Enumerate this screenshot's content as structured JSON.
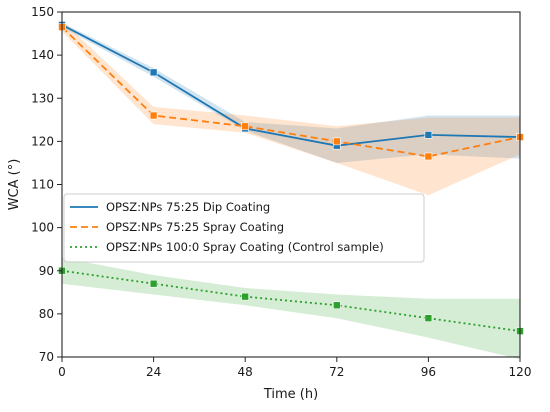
{
  "chart_data": {
    "type": "line",
    "xlabel": "Time (h)",
    "ylabel": "WCA (°)",
    "xlim": [
      0,
      120
    ],
    "ylim": [
      70,
      150
    ],
    "xticks": [
      0,
      24,
      48,
      72,
      96,
      120
    ],
    "yticks": [
      70,
      80,
      90,
      100,
      110,
      120,
      130,
      140,
      150
    ],
    "x": [
      0,
      24,
      48,
      72,
      96,
      120
    ],
    "grid": false,
    "legend_position": "center-left",
    "series": [
      {
        "name": "OPSZ:NPs 75:25 Dip Coating",
        "color": "#1f77b4",
        "linestyle": "solid",
        "values": [
          147,
          136,
          123,
          119,
          121.5,
          121
        ],
        "band_lower": [
          146.5,
          135,
          122.5,
          115,
          117,
          116
        ],
        "band_upper": [
          147.5,
          137,
          124.5,
          123,
          126,
          126
        ]
      },
      {
        "name": "OPSZ:NPs 75:25 Spray Coating",
        "color": "#ff7f0e",
        "linestyle": "dashed",
        "values": [
          146.5,
          126,
          123.5,
          120,
          116.5,
          121
        ],
        "band_lower": [
          145.5,
          124,
          122,
          115,
          107.5,
          117
        ],
        "band_upper": [
          148,
          128,
          126,
          123.5,
          125.5,
          125.5
        ]
      },
      {
        "name": "OPSZ:NPs 100:0 Spray Coating (Control sample)",
        "color": "#2ca02c",
        "linestyle": "dotted",
        "values": [
          90,
          87,
          84,
          82,
          79,
          76
        ],
        "band_lower": [
          87,
          84.5,
          82,
          79,
          74.5,
          69.5
        ],
        "band_upper": [
          93,
          89,
          86,
          84.5,
          83.5,
          83.5
        ]
      }
    ]
  }
}
